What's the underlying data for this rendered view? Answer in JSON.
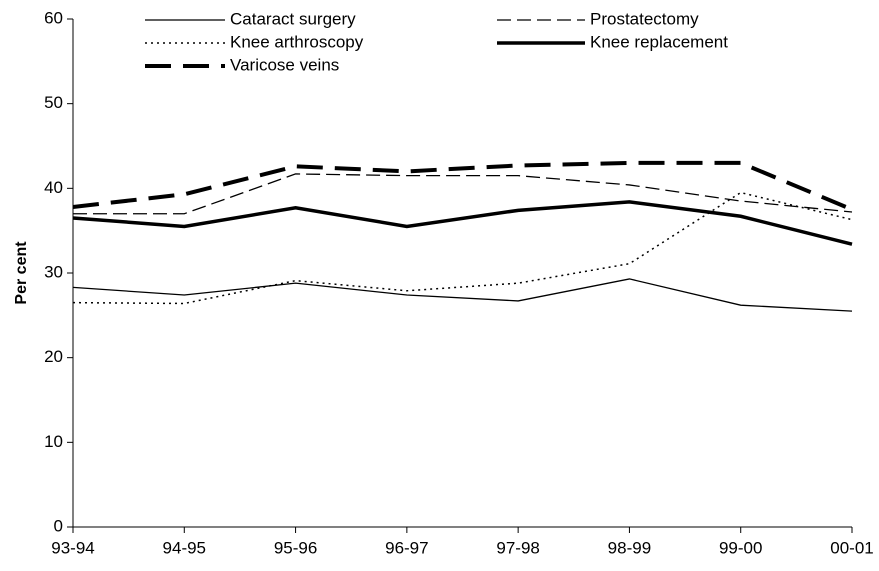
{
  "chart_data": {
    "type": "line",
    "y_label": "Per cent",
    "categories": [
      "93-94",
      "94-95",
      "95-96",
      "96-97",
      "97-98",
      "98-99",
      "99-00",
      "00-01"
    ],
    "series": [
      {
        "name": "Cataract surgery",
        "color": "#000000",
        "dash": "solid",
        "width": 1.3,
        "values": [
          28.3,
          27.4,
          28.8,
          27.4,
          26.7,
          29.3,
          26.2,
          25.5
        ]
      },
      {
        "name": "Prostatectomy",
        "color": "#000000",
        "dash": "dash",
        "width": 1.3,
        "values": [
          37,
          37,
          41.7,
          41.5,
          41.5,
          40.4,
          38.5,
          37.2
        ]
      },
      {
        "name": "Knee arthroscopy",
        "color": "#000000",
        "dash": "dot",
        "width": 1.5,
        "values": [
          26.5,
          26.4,
          29.1,
          27.9,
          28.8,
          31.1,
          39.5,
          36.3
        ]
      },
      {
        "name": "Knee replacement",
        "color": "#000000",
        "dash": "solid",
        "width": 3.5,
        "values": [
          36.5,
          35.5,
          37.7,
          35.5,
          37.4,
          38.4,
          36.7,
          33.4
        ]
      },
      {
        "name": "Varicose veins",
        "color": "#000000",
        "dash": "longdash",
        "width": 4,
        "values": [
          37.8,
          39.3,
          42.6,
          42,
          42.7,
          43,
          43,
          37.5
        ]
      }
    ],
    "ylim": [
      0,
      60
    ],
    "yticks": [
      0,
      10,
      20,
      30,
      40,
      50,
      60
    ],
    "grid": false,
    "legend": "top"
  }
}
